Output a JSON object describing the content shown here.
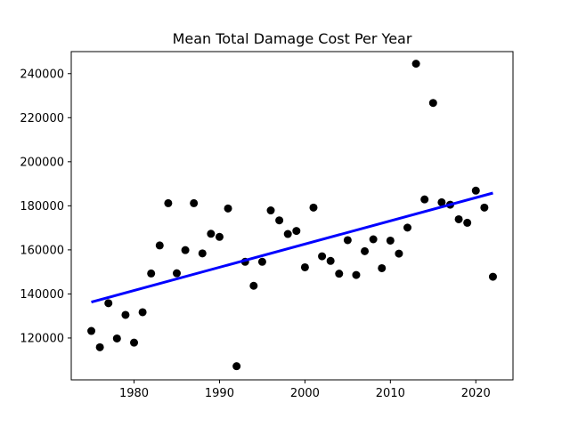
{
  "chart_data": {
    "type": "scatter",
    "title": "Mean Total Damage Cost Per Year",
    "xlabel": "",
    "ylabel": "",
    "xlim": [
      1972.65,
      2024.35
    ],
    "ylim": [
      101000,
      250000
    ],
    "xticks": [
      1980,
      1990,
      2000,
      2010,
      2020
    ],
    "yticks": [
      120000,
      140000,
      160000,
      180000,
      200000,
      220000,
      240000
    ],
    "grid": false,
    "colors": {
      "points": "#000000",
      "trend": "#0000ff"
    },
    "series": [
      {
        "type": "scatter",
        "x": [
          1975,
          1976,
          1977,
          1978,
          1979,
          1980,
          1981,
          1982,
          1983,
          1984,
          1985,
          1986,
          1987,
          1988,
          1989,
          1990,
          1991,
          1992,
          1993,
          1994,
          1995,
          1996,
          1997,
          1998,
          1999,
          2000,
          2001,
          2002,
          2003,
          2004,
          2005,
          2006,
          2007,
          2008,
          2009,
          2010,
          2011,
          2012,
          2013,
          2014,
          2015,
          2016,
          2017,
          2018,
          2019,
          2020,
          2021,
          2022
        ],
        "y": [
          123200,
          115800,
          135800,
          119800,
          130500,
          117900,
          131700,
          149300,
          162000,
          181200,
          149400,
          159900,
          181200,
          158400,
          167300,
          165900,
          178800,
          107200,
          154600,
          143700,
          154600,
          177900,
          173400,
          167200,
          168600,
          152100,
          179200,
          157100,
          155000,
          149200,
          164400,
          148600,
          159400,
          164800,
          151700,
          164200,
          158300,
          170100,
          244500,
          182900,
          226700,
          181600,
          180500,
          173900,
          172300,
          186900,
          179200,
          147800
        ]
      },
      {
        "type": "line",
        "x": [
          1975,
          2022
        ],
        "y": [
          136300,
          185800
        ]
      }
    ]
  }
}
